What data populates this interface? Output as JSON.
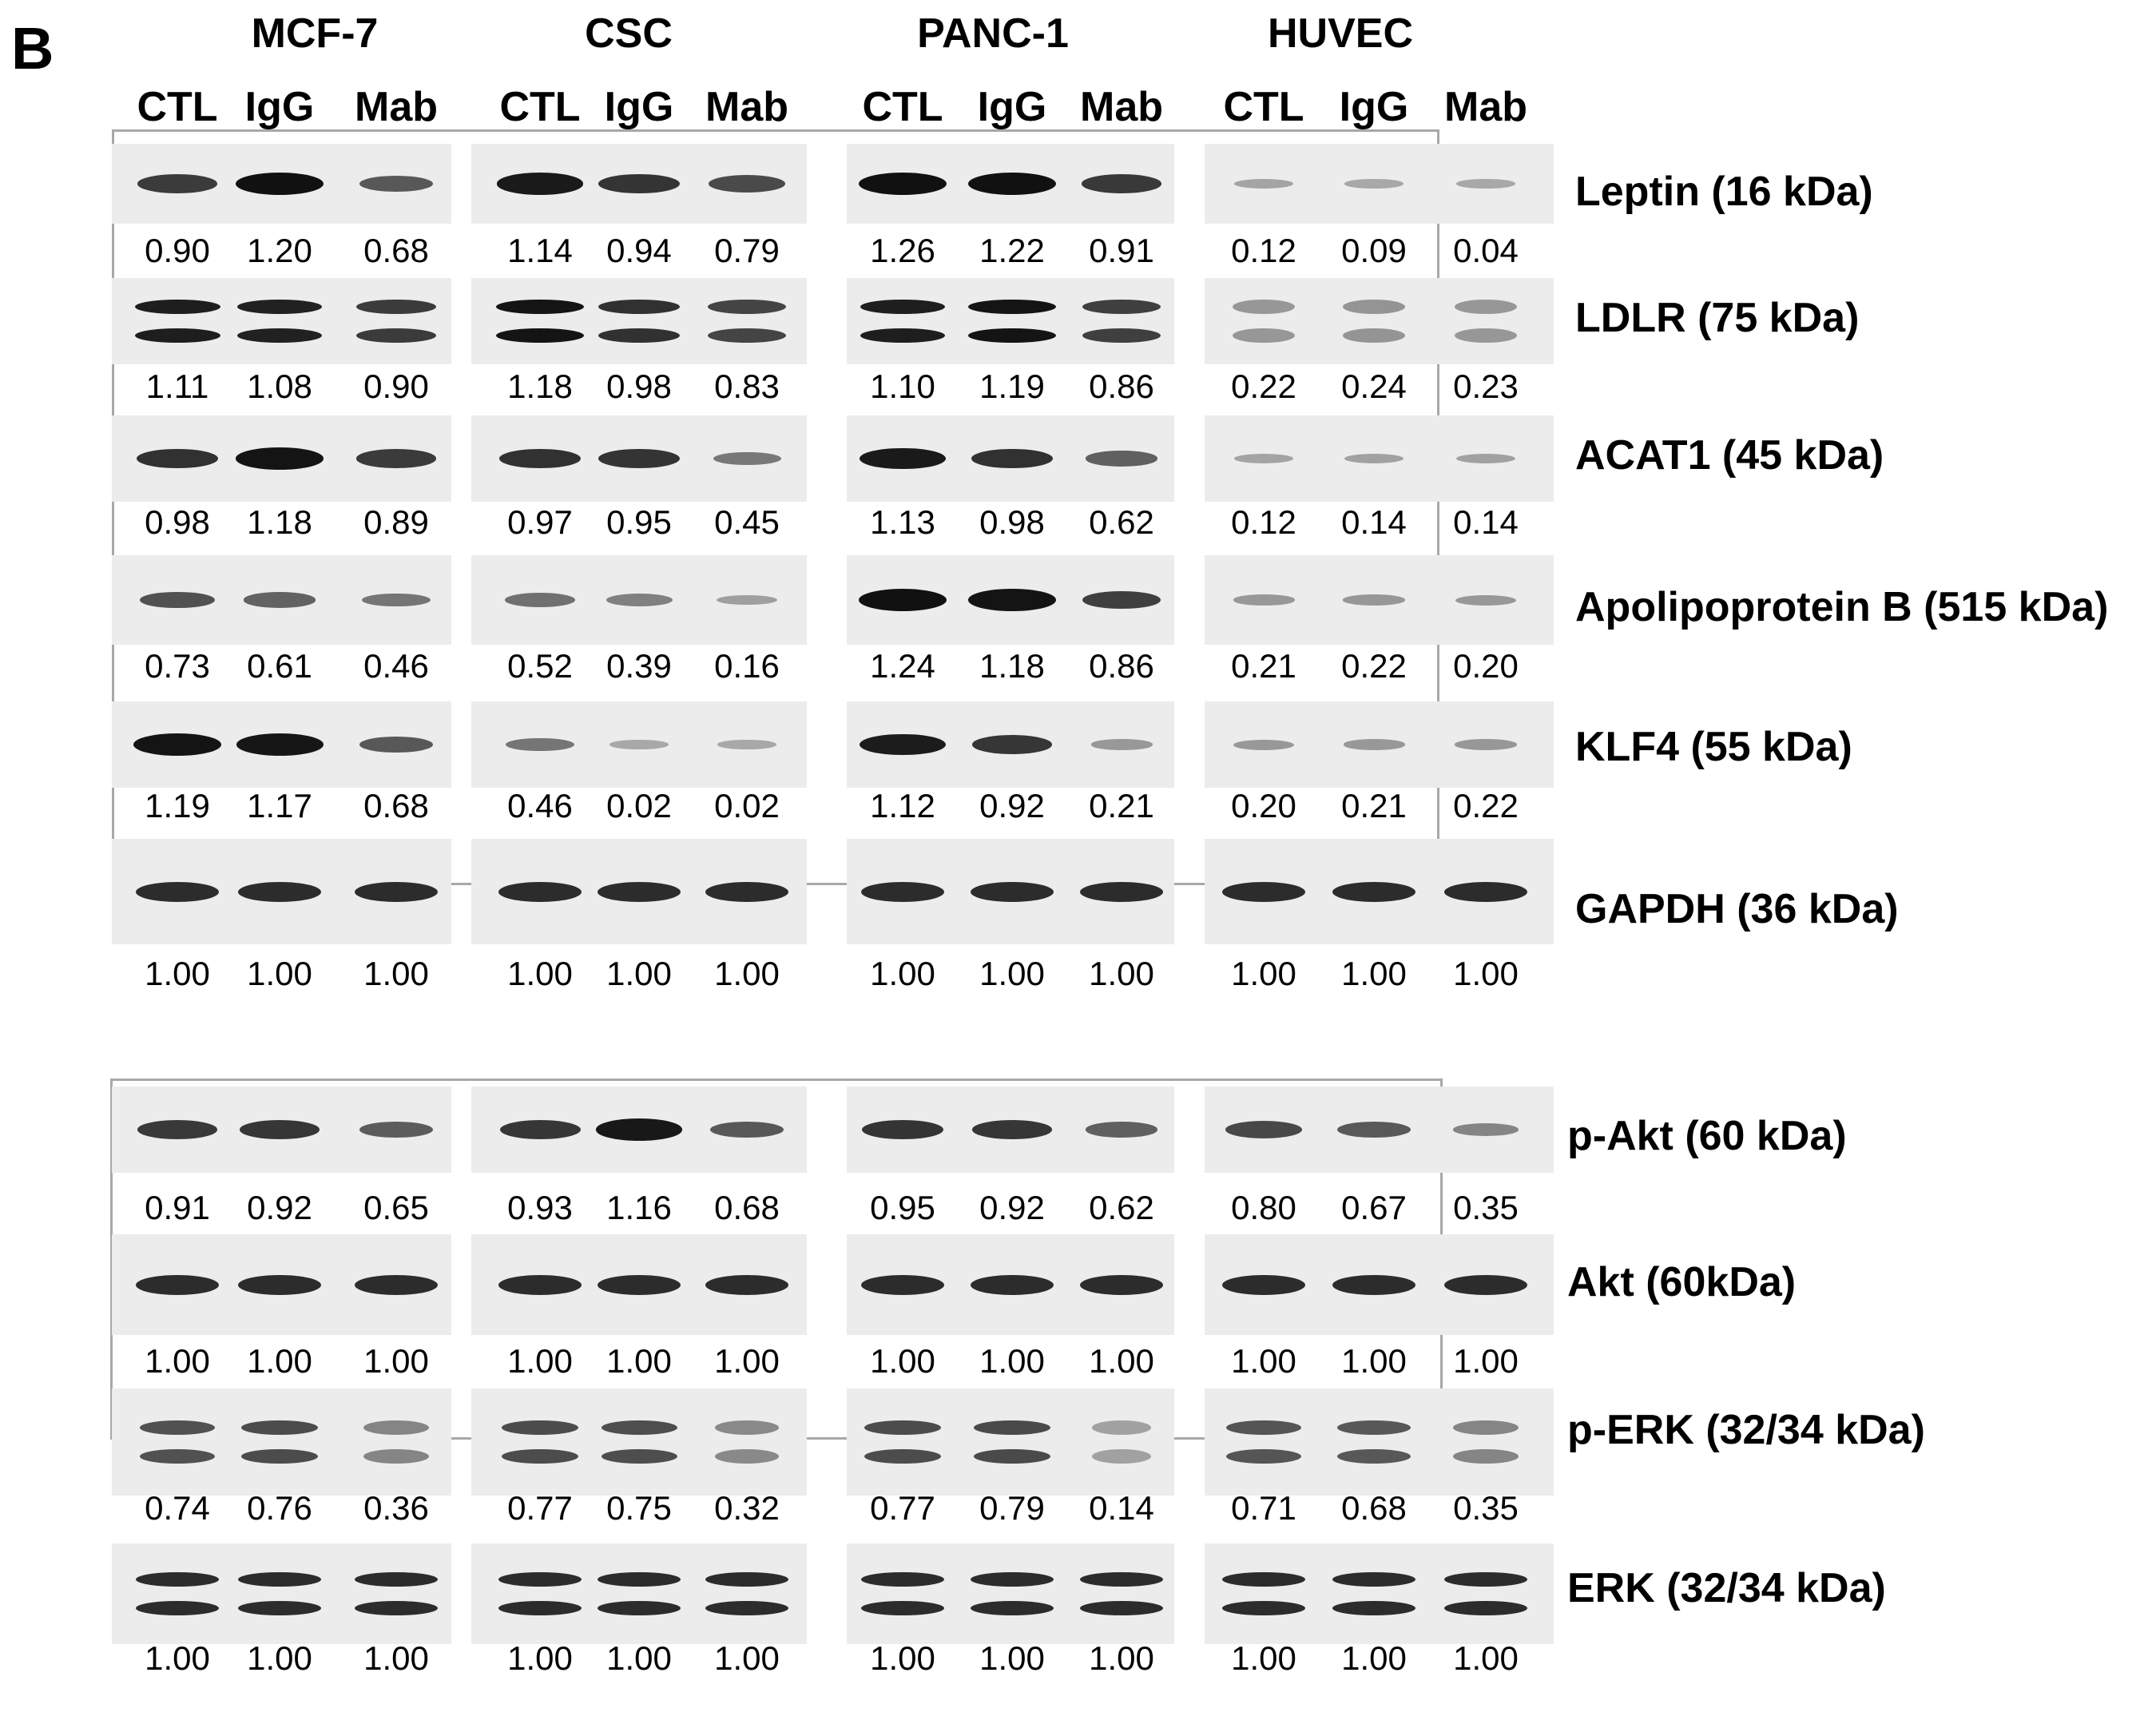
{
  "panel_label": "B",
  "cell_lines": [
    "MCF-7",
    "CSC",
    "PANC-1",
    "HUVEC"
  ],
  "lanes": [
    "CTL",
    "IgG",
    "Mab"
  ],
  "colors": {
    "band": "#111111",
    "blot_bg": "#ececec",
    "frame": "#a8a8a8"
  },
  "groups": [
    {
      "rows": [
        {
          "protein": "Leptin (16 kDa)",
          "values": [
            [
              "0.90",
              "1.20",
              "0.68"
            ],
            [
              "1.14",
              "0.94",
              "0.79"
            ],
            [
              "1.26",
              "1.22",
              "0.91"
            ],
            [
              "0.12",
              "0.09",
              "0.04"
            ]
          ]
        },
        {
          "protein": "LDLR (75 kDa)",
          "values": [
            [
              "1.11",
              "1.08",
              "0.90"
            ],
            [
              "1.18",
              "0.98",
              "0.83"
            ],
            [
              "1.10",
              "1.19",
              "0.86"
            ],
            [
              "0.22",
              "0.24",
              "0.23"
            ]
          ]
        },
        {
          "protein": "ACAT1 (45 kDa)",
          "values": [
            [
              "0.98",
              "1.18",
              "0.89"
            ],
            [
              "0.97",
              "0.95",
              "0.45"
            ],
            [
              "1.13",
              "0.98",
              "0.62"
            ],
            [
              "0.12",
              "0.14",
              "0.14"
            ]
          ]
        },
        {
          "protein": "Apolipoprotein B (515 kDa)",
          "values": [
            [
              "0.73",
              "0.61",
              "0.46"
            ],
            [
              "0.52",
              "0.39",
              "0.16"
            ],
            [
              "1.24",
              "1.18",
              "0.86"
            ],
            [
              "0.21",
              "0.22",
              "0.20"
            ]
          ]
        },
        {
          "protein": "KLF4 (55 kDa)",
          "values": [
            [
              "1.19",
              "1.17",
              "0.68"
            ],
            [
              "0.46",
              "0.02",
              "0.02"
            ],
            [
              "1.12",
              "0.92",
              "0.21"
            ],
            [
              "0.20",
              "0.21",
              "0.22"
            ]
          ]
        },
        {
          "protein": "GAPDH (36 kDa)",
          "values": [
            [
              "1.00",
              "1.00",
              "1.00"
            ],
            [
              "1.00",
              "1.00",
              "1.00"
            ],
            [
              "1.00",
              "1.00",
              "1.00"
            ],
            [
              "1.00",
              "1.00",
              "1.00"
            ]
          ]
        }
      ]
    },
    {
      "rows": [
        {
          "protein": "p-Akt (60 kDa)",
          "values": [
            [
              "0.91",
              "0.92",
              "0.65"
            ],
            [
              "0.93",
              "1.16",
              "0.68"
            ],
            [
              "0.95",
              "0.92",
              "0.62"
            ],
            [
              "0.80",
              "0.67",
              "0.35"
            ]
          ]
        },
        {
          "protein": "Akt (60kDa)",
          "values": [
            [
              "1.00",
              "1.00",
              "1.00"
            ],
            [
              "1.00",
              "1.00",
              "1.00"
            ],
            [
              "1.00",
              "1.00",
              "1.00"
            ],
            [
              "1.00",
              "1.00",
              "1.00"
            ]
          ]
        },
        {
          "protein": "p-ERK (32/34 kDa)",
          "values": [
            [
              "0.74",
              "0.76",
              "0.36"
            ],
            [
              "0.77",
              "0.75",
              "0.32"
            ],
            [
              "0.77",
              "0.79",
              "0.14"
            ],
            [
              "0.71",
              "0.68",
              "0.35"
            ]
          ]
        },
        {
          "protein": "ERK (32/34 kDa)",
          "values": [
            [
              "1.00",
              "1.00",
              "1.00"
            ],
            [
              "1.00",
              "1.00",
              "1.00"
            ],
            [
              "1.00",
              "1.00",
              "1.00"
            ],
            [
              "1.00",
              "1.00",
              "1.00"
            ]
          ]
        }
      ]
    }
  ]
}
